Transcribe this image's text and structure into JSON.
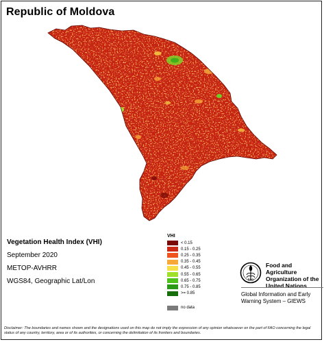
{
  "map": {
    "title": "Republic of Moldova",
    "index_title": "Vegetation Health Index (VHI)",
    "period": "September 2020",
    "sensor": "METOP-AVHRR",
    "projection": "WGS84, Geographic Lat/Lon"
  },
  "legend": {
    "title": "VHI",
    "classes": [
      {
        "label": "< 0.15",
        "color": "#7a0a07"
      },
      {
        "label": "0.15 - 0.25",
        "color": "#cc2a17"
      },
      {
        "label": "0.25 - 0.35",
        "color": "#f0541e"
      },
      {
        "label": "0.35 - 0.45",
        "color": "#f7a838"
      },
      {
        "label": "0.45 - 0.55",
        "color": "#f5e04a"
      },
      {
        "label": "0.55 - 0.65",
        "color": "#9fe02a"
      },
      {
        "label": "0.65 - 0.75",
        "color": "#4fc21c"
      },
      {
        "label": "0.75 - 0.85",
        "color": "#2a9a16"
      },
      {
        "label": ">= 0.85",
        "color": "#166e0c"
      }
    ],
    "no_data": {
      "label": "no data",
      "color": "#7a7a7a"
    }
  },
  "organization": {
    "name": "Food and Agriculture Organization of the United Nations",
    "system": "Global Information and Early Warning System – GIEWS"
  },
  "disclaimer": "Disclaimer: The boundaries and names shown and the designations used on this map do not imply the expression of any opinion whatsoever on the part of FAO concerning the legal status of any country, territory, area or of its authorities, or concerning the delimitation of its frontiers and boundaries."
}
